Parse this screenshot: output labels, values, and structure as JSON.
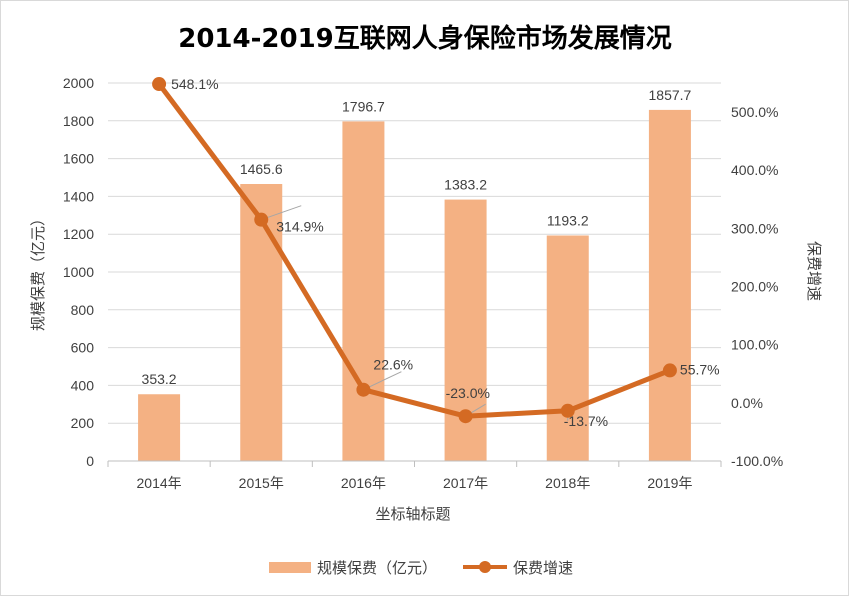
{
  "chart_data": {
    "type": "bar",
    "title": "2014-2019互联网人身保险市场发展情况",
    "xlabel": "坐标轴标题",
    "ylabel": "规模保费（亿元）",
    "y2label": "保费增速",
    "categories": [
      "2014年",
      "2015年",
      "2016年",
      "2017年",
      "2018年",
      "2019年"
    ],
    "ylim": [
      0,
      2000
    ],
    "y_ticks": [
      "0",
      "200",
      "400",
      "600",
      "800",
      "1000",
      "1200",
      "1400",
      "1600",
      "1800",
      "2000"
    ],
    "y2lim": [
      -100,
      550
    ],
    "y2_ticks": [
      "-100.0%",
      "0.0%",
      "100.0%",
      "200.0%",
      "300.0%",
      "400.0%",
      "500.0%"
    ],
    "grid": true,
    "legend_position": "bottom",
    "series": [
      {
        "name": "规模保费（亿元）",
        "type": "bar",
        "axis": "left",
        "color": "#f4b183",
        "values": [
          353.2,
          1465.6,
          1796.7,
          1383.2,
          1193.2,
          1857.7
        ],
        "labels": [
          "353.2",
          "1465.6",
          "1796.7",
          "1383.2",
          "1193.2",
          "1857.7"
        ]
      },
      {
        "name": "保费增速",
        "type": "line",
        "axis": "right",
        "color": "#d46a23",
        "values": [
          548.1,
          314.9,
          22.6,
          -23.0,
          -13.7,
          55.7
        ],
        "labels": [
          "548.1%",
          "314.9%",
          "22.6%",
          "-23.0%",
          "-13.7%",
          "55.7%"
        ]
      }
    ]
  }
}
